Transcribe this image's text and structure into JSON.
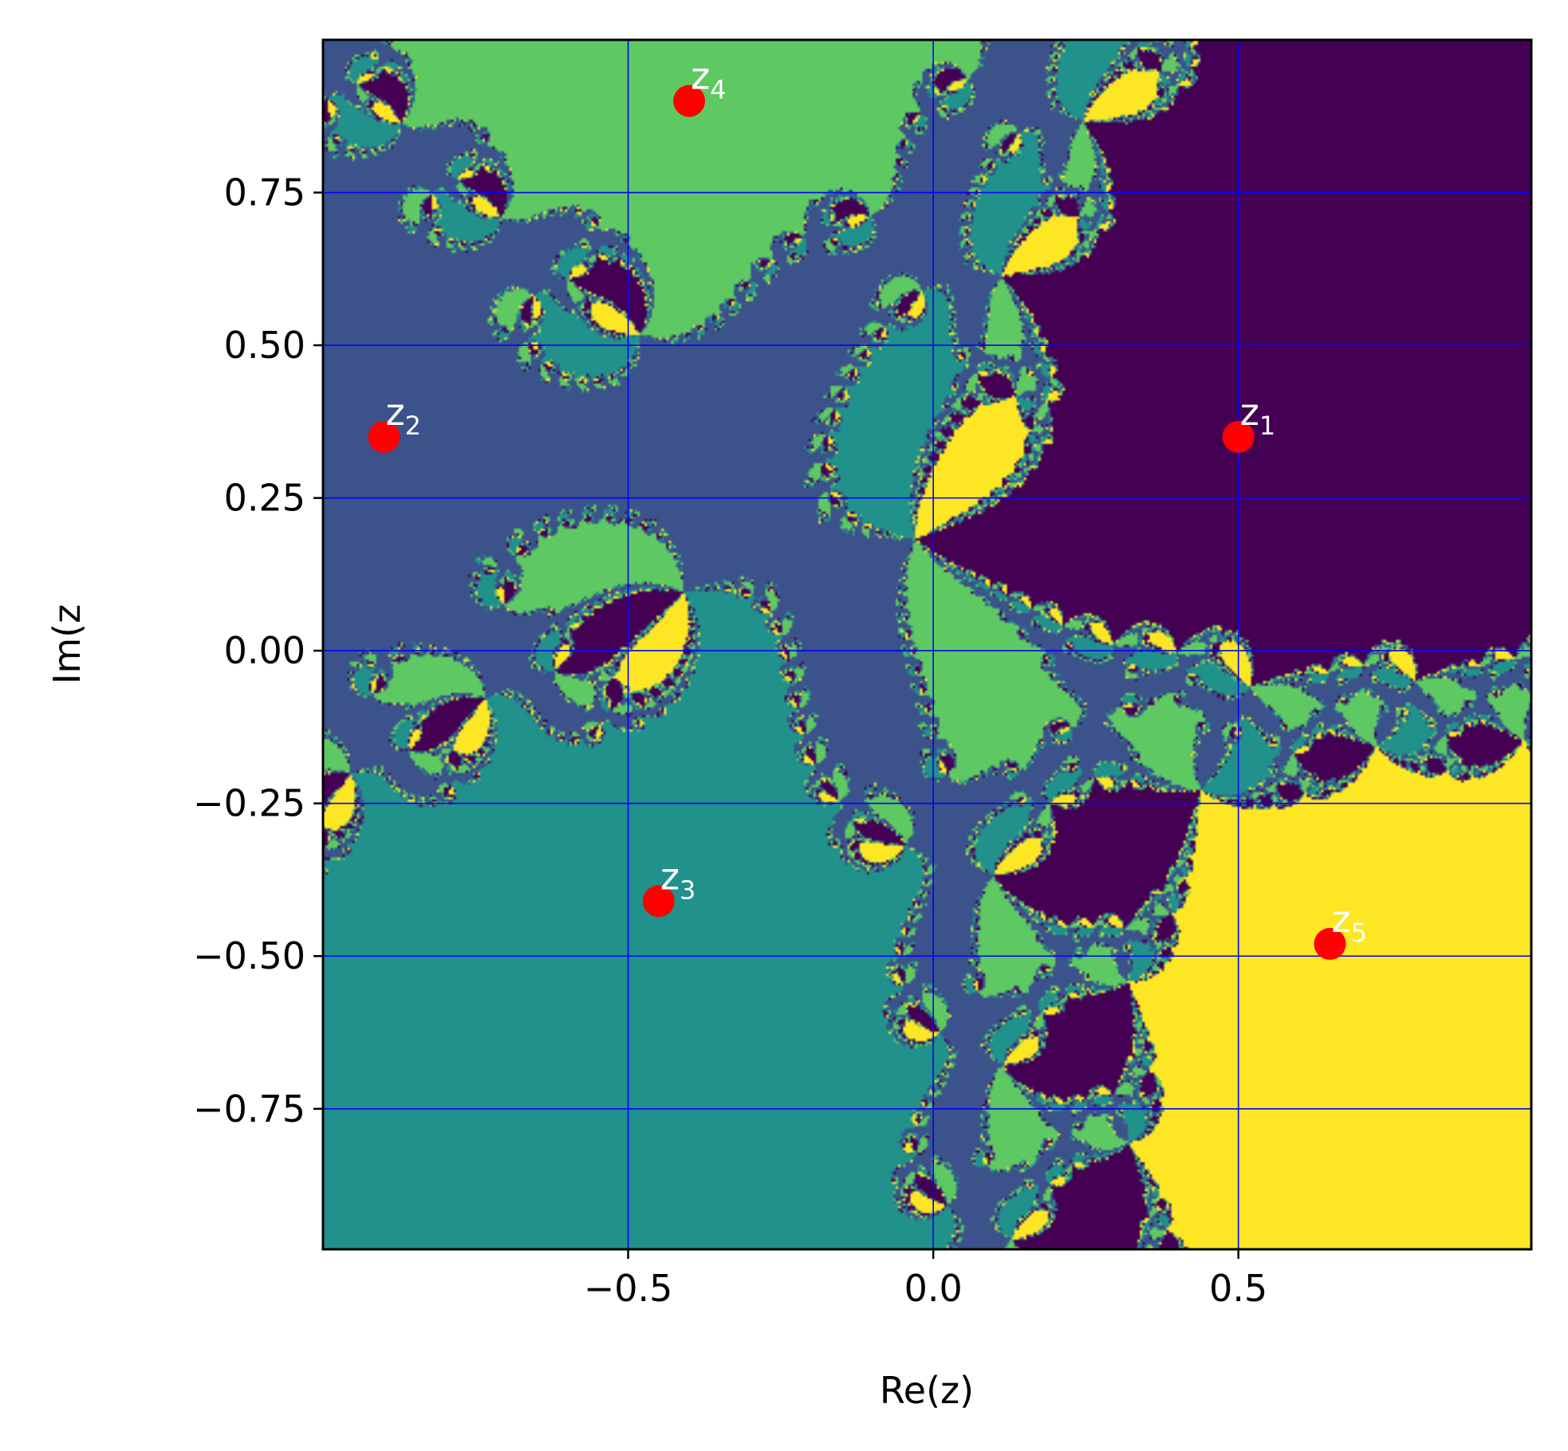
{
  "chart_data": {
    "type": "heatmap",
    "title": "",
    "xlabel": "Re(z)",
    "ylabel": "Im(z",
    "xlim": [
      -1.0,
      0.98
    ],
    "ylim": [
      -0.98,
      1.0
    ],
    "x_ticks": [
      -0.5,
      0.0,
      0.5
    ],
    "x_tick_labels": [
      "−0.5",
      "0.0",
      "0.5"
    ],
    "y_ticks": [
      -0.75,
      -0.5,
      -0.25,
      0.0,
      0.25,
      0.5,
      0.75
    ],
    "y_tick_labels": [
      "−0.75",
      "−0.50",
      "−0.25",
      "0.00",
      "0.25",
      "0.50",
      "0.75"
    ],
    "grid": true,
    "grid_color": "#0000ff",
    "colormap": "viridis",
    "basin_colors": [
      "#440154",
      "#3b528b",
      "#21918c",
      "#5ec962",
      "#fde725"
    ],
    "roots_color": "#ff0000",
    "roots": [
      {
        "label": "z",
        "sub": "1",
        "x": 0.5,
        "y": 0.35
      },
      {
        "label": "z",
        "sub": "2",
        "x": -0.9,
        "y": 0.35
      },
      {
        "label": "z",
        "sub": "3",
        "x": -0.45,
        "y": -0.41
      },
      {
        "label": "z",
        "sub": "4",
        "x": -0.4,
        "y": 0.9
      },
      {
        "label": "z",
        "sub": "5",
        "x": 0.65,
        "y": -0.48
      }
    ]
  }
}
